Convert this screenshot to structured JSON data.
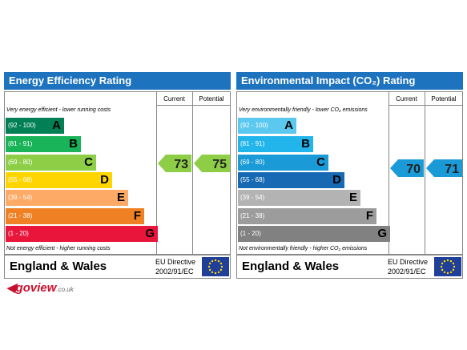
{
  "panels": [
    {
      "title": "Energy Efficiency Rating",
      "col_current": "Current",
      "col_potential": "Potential",
      "top_note": "Very energy efficient - lower running costs",
      "bands": [
        {
          "range": "(92 - 100)",
          "letter": "A",
          "color": "#008054"
        },
        {
          "range": "(81 - 91)",
          "letter": "B",
          "color": "#19b459"
        },
        {
          "range": "(69 - 80)",
          "letter": "C",
          "color": "#8dce46"
        },
        {
          "range": "(55 - 68)",
          "letter": "D",
          "color": "#ffd500"
        },
        {
          "range": "(39 - 54)",
          "letter": "E",
          "color": "#fcaa65"
        },
        {
          "range": "(21 - 38)",
          "letter": "F",
          "color": "#ef8023"
        },
        {
          "range": "(1 - 20)",
          "letter": "G",
          "color": "#e9153b"
        }
      ],
      "bottom_note": "Not energy efficient - higher running costs",
      "current": 73,
      "potential": 75,
      "footer": "England & Wales",
      "directive_1": "EU Directive",
      "directive_2": "2002/91/EC"
    },
    {
      "title": "Environmental Impact (CO₂) Rating",
      "col_current": "Current",
      "col_potential": "Potential",
      "top_note": "Very environmentally friendly - lower CO₂ emissions",
      "bands": [
        {
          "range": "(92 - 100)",
          "letter": "A",
          "color": "#5bc8f0"
        },
        {
          "range": "(81 - 91)",
          "letter": "B",
          "color": "#22b5eb"
        },
        {
          "range": "(69 - 80)",
          "letter": "C",
          "color": "#1a9ad7"
        },
        {
          "range": "(55 - 68)",
          "letter": "D",
          "color": "#1869b3"
        },
        {
          "range": "(39 - 54)",
          "letter": "E",
          "color": "#b3b3b3"
        },
        {
          "range": "(21 - 38)",
          "letter": "F",
          "color": "#9c9c9c"
        },
        {
          "range": "(1 - 20)",
          "letter": "G",
          "color": "#818181"
        }
      ],
      "bottom_note": "Not environmentally friendly - higher CO₂ emissions",
      "current": 70,
      "potential": 71,
      "footer": "England & Wales",
      "directive_1": "EU Directive",
      "directive_2": "2002/91/EC"
    }
  ],
  "logo": {
    "main": "goview",
    "suffix": ".co.uk"
  }
}
